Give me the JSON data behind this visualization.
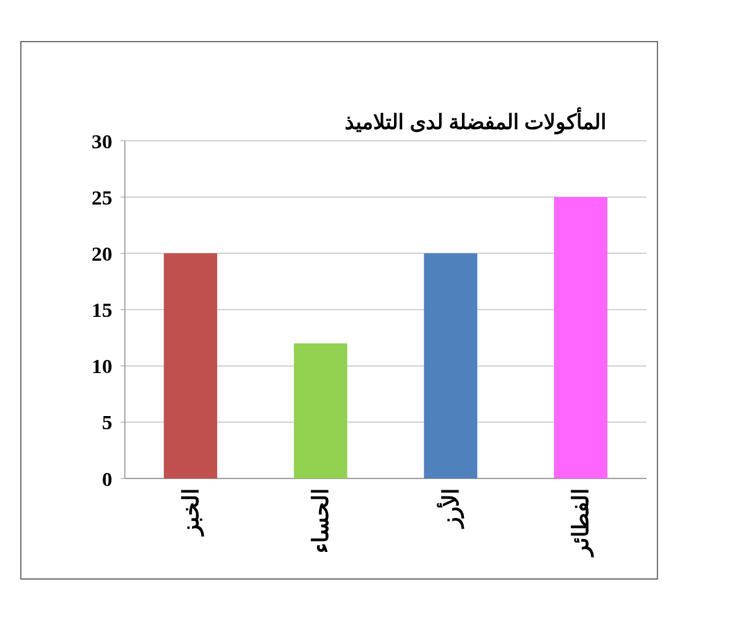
{
  "chart_data": {
    "type": "bar",
    "title": "المأكولات المفضلة لدى التلاميذ",
    "categories": [
      "الخبز",
      "الحساء",
      "الأرز",
      "الفطائر"
    ],
    "values": [
      20,
      12,
      20,
      25
    ],
    "colors": [
      "#c0504d",
      "#92d050",
      "#4f81bd",
      "#ff66ff"
    ],
    "ylim": [
      0,
      30
    ],
    "yticks": [
      0,
      5,
      10,
      15,
      20,
      25,
      30
    ],
    "grid": "y"
  }
}
